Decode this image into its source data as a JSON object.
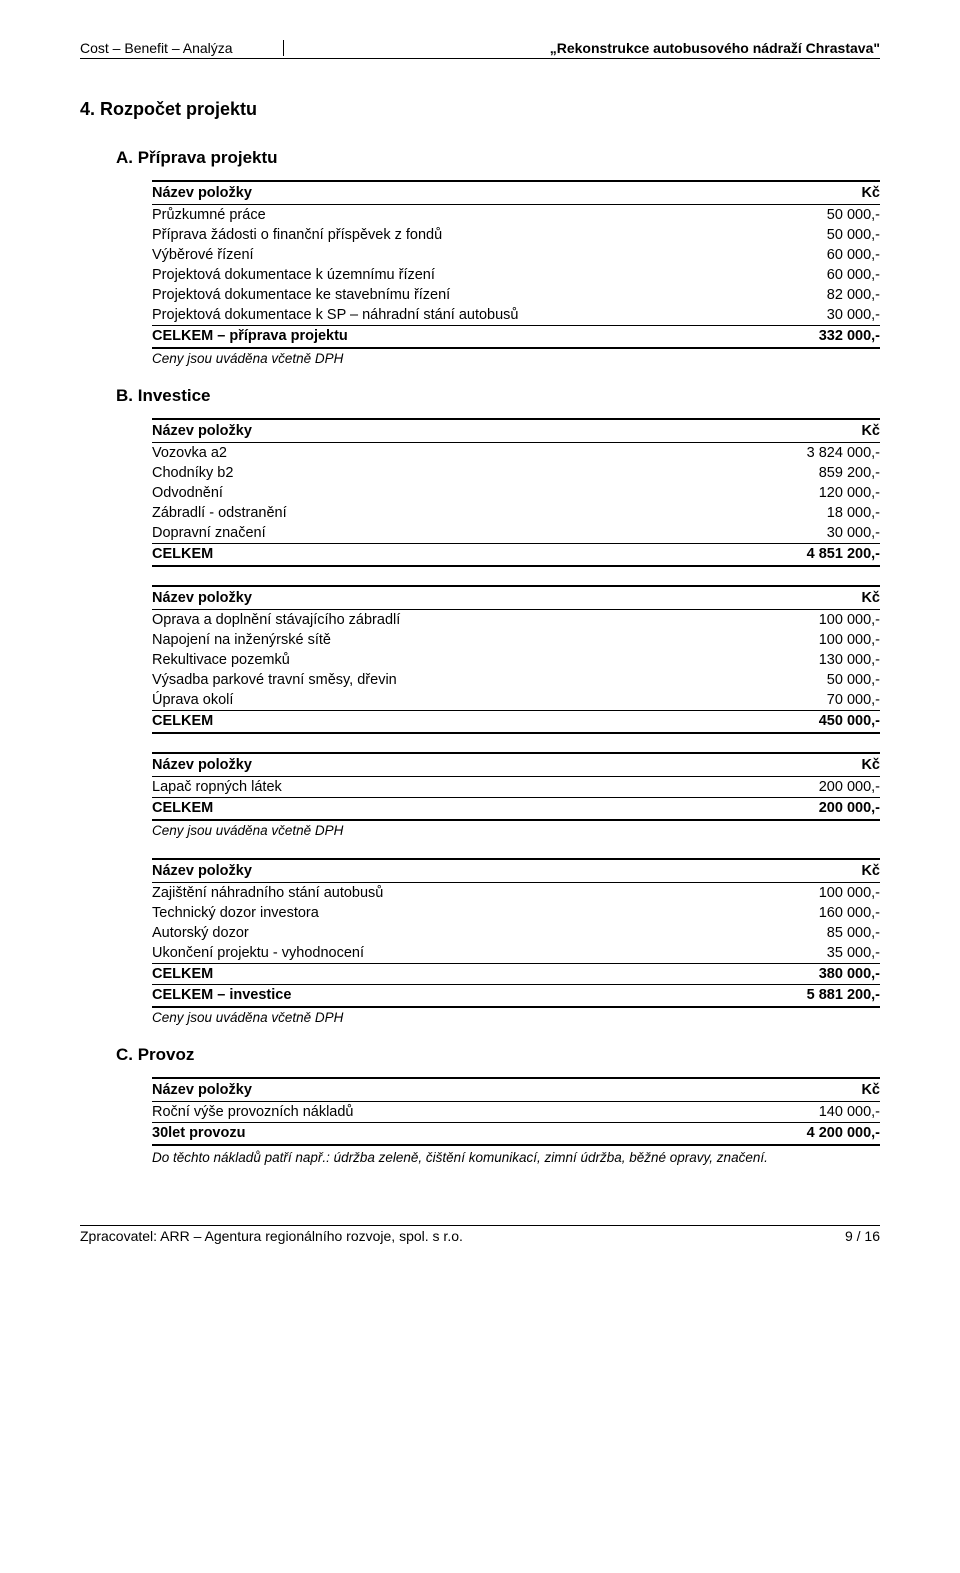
{
  "header": {
    "left": "Cost – Benefit – Analýza",
    "right": "„Rekonstrukce autobusového nádraží Chrastava\""
  },
  "h1": "4. Rozpočet projektu",
  "sections": {
    "A": {
      "title": "A. Příprava projektu",
      "header_left": "Název položky",
      "header_right": "Kč",
      "rows": [
        {
          "label": "Průzkumné práce",
          "value": "50 000,-"
        },
        {
          "label": "Příprava žádosti o finanční příspěvek z fondů",
          "value": "50 000,-"
        },
        {
          "label": "Výběrové řízení",
          "value": "60 000,-"
        },
        {
          "label": "Projektová dokumentace k územnímu řízení",
          "value": "60 000,-"
        },
        {
          "label": "Projektová dokumentace ke stavebnímu řízení",
          "value": "82 000,-"
        },
        {
          "label": "Projektová dokumentace k SP – náhradní stání autobusů",
          "value": "30 000,-"
        }
      ],
      "total": {
        "label": "CELKEM – příprava projektu",
        "value": "332 000,-"
      },
      "note": "Ceny jsou uváděna včetně DPH"
    },
    "B": {
      "title": "B. Investice",
      "tables": [
        {
          "header_left": "Název položky",
          "header_right": "Kč",
          "rows": [
            {
              "label": "Vozovka a2",
              "value": "3 824 000,-"
            },
            {
              "label": "Chodníky b2",
              "value": "859 200,-"
            },
            {
              "label": "Odvodnění",
              "value": "120 000,-"
            },
            {
              "label": "Zábradlí - odstranění",
              "value": "18 000,-"
            },
            {
              "label": "Dopravní značení",
              "value": "30 000,-"
            }
          ],
          "total": {
            "label": "CELKEM",
            "value": "4 851 200,-"
          }
        },
        {
          "header_left": "Název položky",
          "header_right": "Kč",
          "rows": [
            {
              "label": "Oprava a doplnění stávajícího zábradlí",
              "value": "100 000,-"
            },
            {
              "label": "Napojení na inženýrské sítě",
              "value": "100 000,-"
            },
            {
              "label": "Rekultivace pozemků",
              "value": "130 000,-"
            },
            {
              "label": "Výsadba parkové travní směsy, dřevin",
              "value": "50 000,-"
            },
            {
              "label": "Úprava okolí",
              "value": "70 000,-"
            }
          ],
          "total": {
            "label": "CELKEM",
            "value": "450 000,-"
          }
        },
        {
          "header_left": "Název položky",
          "header_right": "Kč",
          "rows": [
            {
              "label": "Lapač ropných látek",
              "value": "200 000,-"
            }
          ],
          "total": {
            "label": "CELKEM",
            "value": "200 000,-"
          },
          "note": "Ceny jsou uváděna včetně DPH"
        },
        {
          "header_left": "Název položky",
          "header_right": "Kč",
          "rows": [
            {
              "label": "Zajištění náhradního stání autobusů",
              "value": "100 000,-"
            },
            {
              "label": "Technický dozor investora",
              "value": "160 000,-"
            },
            {
              "label": "Autorský dozor",
              "value": "85 000,-"
            },
            {
              "label": "Ukončení projektu - vyhodnocení",
              "value": "35 000,-"
            }
          ],
          "subtotal": {
            "label": "CELKEM",
            "value": "380 000,-"
          },
          "total": {
            "label": "CELKEM – investice",
            "value": "5 881 200,-"
          },
          "note": "Ceny jsou uváděna včetně DPH"
        }
      ]
    },
    "C": {
      "title": "C. Provoz",
      "header_left": "Název položky",
      "header_right": "Kč",
      "rows": [
        {
          "label": "Roční výše provozních nákladů",
          "value": "140 000,-"
        }
      ],
      "total": {
        "label": "30let provozu",
        "value": "4 200 000,-"
      },
      "note": "Do těchto nákladů patří např.: údržba zeleně, čištění komunikací, zimní údržba, běžné opravy, značení."
    }
  },
  "footer": {
    "left": "Zpracovatel: ARR – Agentura regionálního rozvoje, spol. s r.o.",
    "right": "9 / 16"
  }
}
